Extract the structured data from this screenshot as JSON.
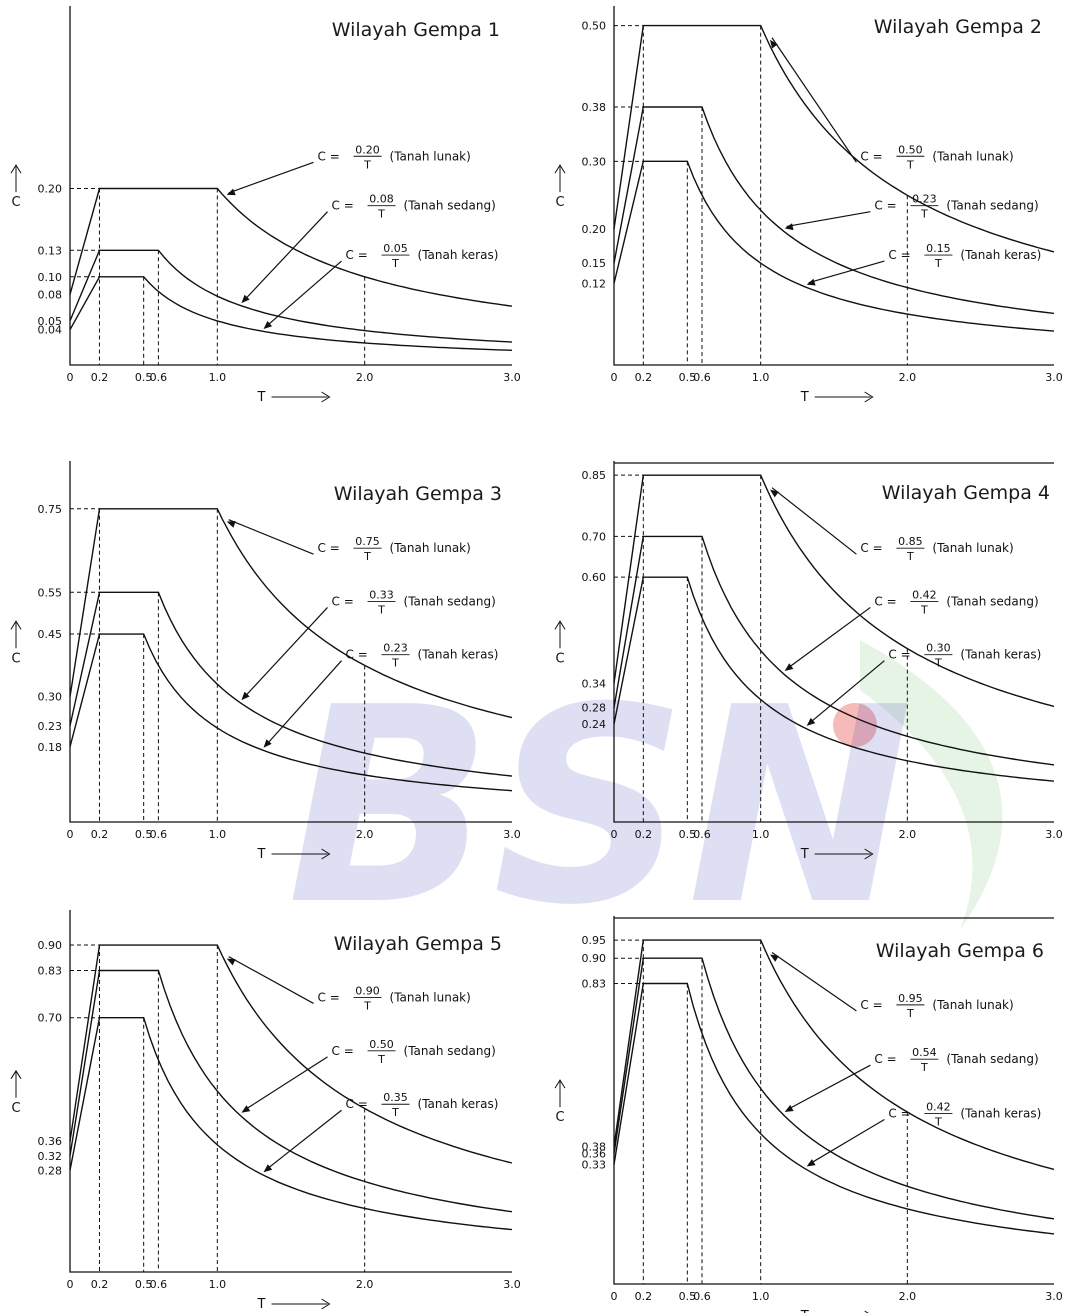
{
  "chart_data": [
    {
      "type": "line",
      "title": "Wilayah Gempa 1",
      "xlabel": "T",
      "ylabel": "C",
      "xlim": [
        0,
        3.0
      ],
      "ylim": [
        0,
        0.4
      ],
      "xticks": [
        "0",
        "0.2",
        "0.5",
        "0.6",
        "1.0",
        "2.0",
        "3.0"
      ],
      "yticks": [
        "0.20",
        "0.13",
        "0.10",
        "0.08",
        "0.05",
        "0.04"
      ],
      "series": [
        {
          "name": "Tanah lunak",
          "formula_num": "0.20",
          "y0": 0.08,
          "plateau": 0.2,
          "tc": 1.0
        },
        {
          "name": "Tanah sedang",
          "formula_num": "0.08",
          "y0": 0.05,
          "plateau": 0.13,
          "tc": 0.6
        },
        {
          "name": "Tanah keras",
          "formula_num": "0.05",
          "y0": 0.04,
          "plateau": 0.1,
          "tc": 0.5
        }
      ]
    },
    {
      "type": "line",
      "title": "Wilayah Gempa 2",
      "xlabel": "T",
      "ylabel": "C",
      "xlim": [
        0,
        3.0
      ],
      "ylim": [
        0,
        0.52
      ],
      "xticks": [
        "0",
        "0.2",
        "0.5",
        "0.6",
        "1.0",
        "2.0",
        "3.0"
      ],
      "yticks": [
        "0.50",
        "0.38",
        "0.30",
        "0.20",
        "0.15",
        "0.12"
      ],
      "series": [
        {
          "name": "Tanah lunak",
          "formula_num": "0.50",
          "y0": 0.2,
          "plateau": 0.5,
          "tc": 1.0
        },
        {
          "name": "Tanah sedang",
          "formula_num": "0.23",
          "y0": 0.15,
          "plateau": 0.38,
          "tc": 0.6
        },
        {
          "name": "Tanah keras",
          "formula_num": "0.15",
          "y0": 0.12,
          "plateau": 0.3,
          "tc": 0.5
        }
      ]
    },
    {
      "type": "line",
      "title": "Wilayah Gempa 3",
      "xlabel": "T",
      "ylabel": "C",
      "xlim": [
        0,
        3.0
      ],
      "ylim": [
        0,
        0.85
      ],
      "xticks": [
        "0",
        "0.2",
        "0.5",
        "0.6",
        "1.0",
        "2.0",
        "3.0"
      ],
      "yticks": [
        "0.75",
        "0.55",
        "0.45",
        "0.30",
        "0.23",
        "0.18"
      ],
      "series": [
        {
          "name": "Tanah lunak",
          "formula_num": "0.75",
          "y0": 0.3,
          "plateau": 0.75,
          "tc": 1.0
        },
        {
          "name": "Tanah sedang",
          "formula_num": "0.33",
          "y0": 0.23,
          "plateau": 0.55,
          "tc": 0.6
        },
        {
          "name": "Tanah keras",
          "formula_num": "0.23",
          "y0": 0.18,
          "plateau": 0.45,
          "tc": 0.5
        }
      ]
    },
    {
      "type": "line",
      "title": "Wilayah Gempa 4",
      "xlabel": "T",
      "ylabel": "C",
      "xlim": [
        0,
        3.0
      ],
      "ylim": [
        0,
        0.87
      ],
      "xticks": [
        "0",
        "0.2",
        "0.5",
        "0.6",
        "1.0",
        "2.0",
        "3.0"
      ],
      "yticks": [
        "0.85",
        "0.70",
        "0.60",
        "0.34",
        "0.28",
        "0.24"
      ],
      "series": [
        {
          "name": "Tanah lunak",
          "formula_num": "0.85",
          "y0": 0.34,
          "plateau": 0.85,
          "tc": 1.0
        },
        {
          "name": "Tanah sedang",
          "formula_num": "0.42",
          "y0": 0.28,
          "plateau": 0.7,
          "tc": 0.6
        },
        {
          "name": "Tanah keras",
          "formula_num": "0.30",
          "y0": 0.24,
          "plateau": 0.6,
          "tc": 0.5
        }
      ]
    },
    {
      "type": "line",
      "title": "Wilayah Gempa 5",
      "xlabel": "T",
      "ylabel": "C",
      "xlim": [
        0,
        3.0
      ],
      "ylim": [
        0,
        0.98
      ],
      "xticks": [
        "0",
        "0.2",
        "0.5",
        "0.6",
        "1.0",
        "2.0",
        "3.0"
      ],
      "yticks": [
        "0.90",
        "0.83",
        "0.70",
        "0.36",
        "0.32",
        "0.28"
      ],
      "series": [
        {
          "name": "Tanah lunak",
          "formula_num": "0.90",
          "y0": 0.36,
          "plateau": 0.9,
          "tc": 1.0
        },
        {
          "name": "Tanah sedang",
          "formula_num": "0.50",
          "y0": 0.32,
          "plateau": 0.83,
          "tc": 0.6
        },
        {
          "name": "Tanah keras",
          "formula_num": "0.35",
          "y0": 0.28,
          "plateau": 0.7,
          "tc": 0.5
        }
      ]
    },
    {
      "type": "line",
      "title": "Wilayah Gempa 6",
      "xlabel": "T",
      "ylabel": "C",
      "xlim": [
        0,
        3.0
      ],
      "ylim": [
        0,
        1.0
      ],
      "xticks": [
        "0",
        "0.2",
        "0.5",
        "0.6",
        "1.0",
        "2.0",
        "3.0"
      ],
      "yticks": [
        "0.95",
        "0.90",
        "0.83",
        "0.38",
        "0.36",
        "0.33"
      ],
      "series": [
        {
          "name": "Tanah lunak",
          "formula_num": "0.95",
          "y0": 0.38,
          "plateau": 0.95,
          "tc": 1.0
        },
        {
          "name": "Tanah sedang",
          "formula_num": "0.54",
          "y0": 0.36,
          "plateau": 0.9,
          "tc": 0.6
        },
        {
          "name": "Tanah keras",
          "formula_num": "0.42",
          "y0": 0.33,
          "plateau": 0.83,
          "tc": 0.5
        }
      ]
    }
  ],
  "labels": {
    "c_prefix": "C =",
    "t_denominator": "T",
    "x_axis": "T",
    "y_axis": "C"
  },
  "watermark": {
    "text": "BSN",
    "color_blue": "#3a3fb5",
    "color_red": "#e53935",
    "color_green": "#4caf50"
  }
}
